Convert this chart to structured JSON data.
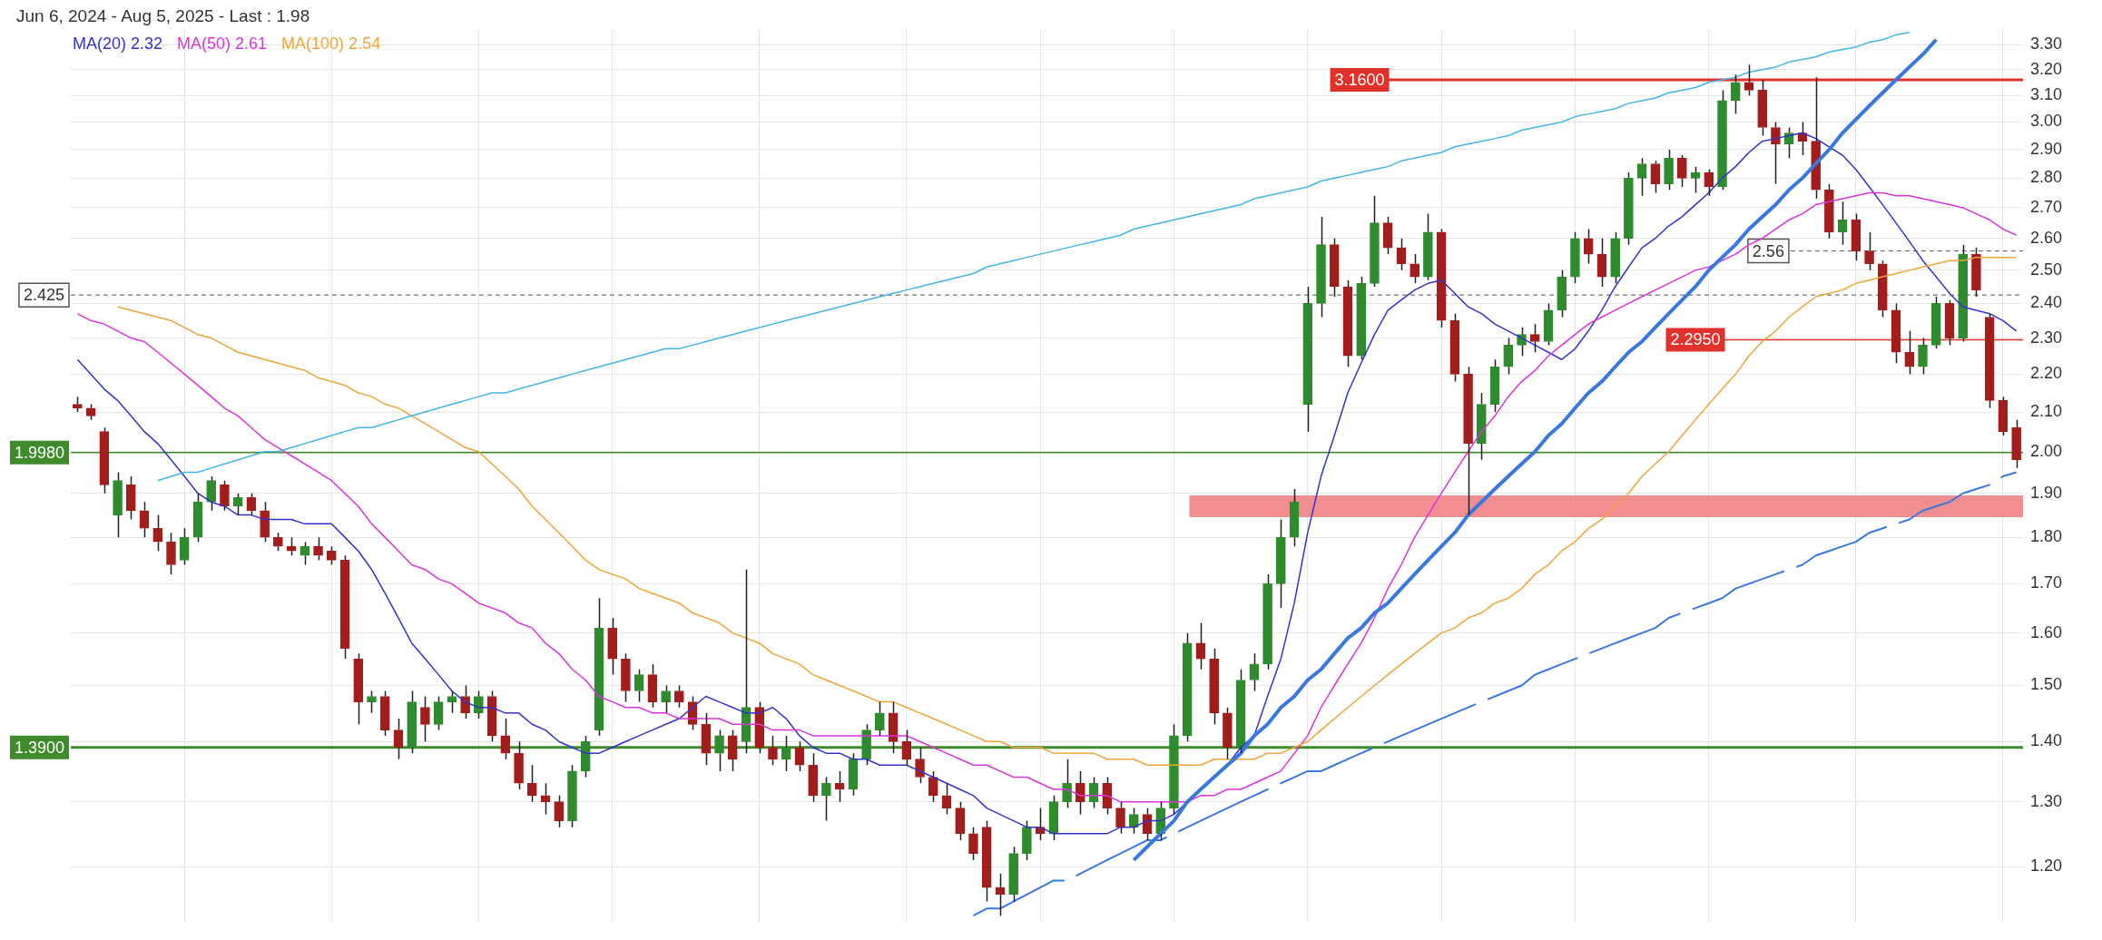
{
  "chart_data": {
    "type": "candlestick",
    "title": "Jun 6, 2024 - Aug 5, 2025 - Last : 1.98",
    "categories": [
      null,
      null,
      null,
      null,
      null,
      null,
      null,
      null,
      null,
      null,
      null,
      null,
      null,
      null,
      null,
      null,
      null,
      null,
      null,
      null,
      null,
      null,
      null,
      null,
      null,
      null,
      null,
      null,
      null,
      null,
      null,
      null,
      null,
      null,
      null,
      null,
      null,
      null,
      null,
      null,
      null,
      null,
      null,
      null,
      null,
      null,
      null,
      null,
      null,
      null,
      null,
      null,
      null,
      null,
      null,
      null,
      null,
      null,
      null,
      null,
      null,
      null,
      null,
      null,
      null,
      null,
      null,
      null,
      null,
      null,
      null,
      null,
      null,
      null,
      null,
      null,
      null,
      null,
      null,
      null,
      null,
      null,
      null,
      null,
      null,
      null,
      null,
      null,
      null,
      null,
      null,
      null,
      null,
      null,
      null,
      null,
      null,
      null,
      null,
      null,
      null,
      null,
      null,
      null,
      null,
      null,
      null,
      null,
      null,
      null,
      null,
      null,
      null,
      null,
      null,
      null,
      null,
      null,
      null,
      null,
      null,
      null,
      null,
      null,
      null,
      null,
      null,
      null,
      null,
      null,
      null,
      null,
      null,
      null,
      null,
      null,
      null,
      null,
      null,
      null,
      null,
      null,
      null,
      null,
      null,
      null
    ],
    "ohlc": [
      [
        2.12,
        2.14,
        2.1,
        2.11
      ],
      [
        2.11,
        2.12,
        2.08,
        2.09
      ],
      [
        2.05,
        2.06,
        1.9,
        1.92
      ],
      [
        1.85,
        1.95,
        1.8,
        1.93
      ],
      [
        1.92,
        1.94,
        1.84,
        1.86
      ],
      [
        1.86,
        1.88,
        1.8,
        1.82
      ],
      [
        1.82,
        1.85,
        1.77,
        1.79
      ],
      [
        1.79,
        1.81,
        1.72,
        1.74
      ],
      [
        1.75,
        1.82,
        1.74,
        1.8
      ],
      [
        1.8,
        1.9,
        1.79,
        1.88
      ],
      [
        1.88,
        1.94,
        1.86,
        1.93
      ],
      [
        1.92,
        1.93,
        1.86,
        1.87
      ],
      [
        1.87,
        1.9,
        1.85,
        1.89
      ],
      [
        1.89,
        1.9,
        1.85,
        1.86
      ],
      [
        1.86,
        1.88,
        1.79,
        1.8
      ],
      [
        1.8,
        1.81,
        1.77,
        1.78
      ],
      [
        1.78,
        1.8,
        1.76,
        1.77
      ],
      [
        1.76,
        1.79,
        1.74,
        1.78
      ],
      [
        1.78,
        1.8,
        1.75,
        1.76
      ],
      [
        1.77,
        1.78,
        1.74,
        1.75
      ],
      [
        1.75,
        1.76,
        1.55,
        1.57
      ],
      [
        1.55,
        1.56,
        1.43,
        1.47
      ],
      [
        1.47,
        1.49,
        1.45,
        1.48
      ],
      [
        1.48,
        1.49,
        1.41,
        1.42
      ],
      [
        1.42,
        1.44,
        1.37,
        1.39
      ],
      [
        1.39,
        1.49,
        1.38,
        1.47
      ],
      [
        1.46,
        1.48,
        1.4,
        1.43
      ],
      [
        1.43,
        1.48,
        1.42,
        1.47
      ],
      [
        1.47,
        1.49,
        1.45,
        1.48
      ],
      [
        1.48,
        1.5,
        1.44,
        1.45
      ],
      [
        1.45,
        1.49,
        1.44,
        1.48
      ],
      [
        1.48,
        1.49,
        1.4,
        1.41
      ],
      [
        1.41,
        1.44,
        1.37,
        1.38
      ],
      [
        1.38,
        1.4,
        1.32,
        1.33
      ],
      [
        1.33,
        1.36,
        1.3,
        1.31
      ],
      [
        1.31,
        1.33,
        1.28,
        1.3
      ],
      [
        1.3,
        1.31,
        1.26,
        1.27
      ],
      [
        1.27,
        1.36,
        1.26,
        1.35
      ],
      [
        1.35,
        1.41,
        1.34,
        1.4
      ],
      [
        1.42,
        1.67,
        1.41,
        1.61
      ],
      [
        1.61,
        1.63,
        1.52,
        1.55
      ],
      [
        1.55,
        1.56,
        1.47,
        1.49
      ],
      [
        1.49,
        1.53,
        1.47,
        1.52
      ],
      [
        1.52,
        1.54,
        1.46,
        1.47
      ],
      [
        1.47,
        1.5,
        1.45,
        1.49
      ],
      [
        1.49,
        1.5,
        1.46,
        1.47
      ],
      [
        1.47,
        1.48,
        1.42,
        1.43
      ],
      [
        1.43,
        1.45,
        1.36,
        1.38
      ],
      [
        1.38,
        1.42,
        1.35,
        1.41
      ],
      [
        1.41,
        1.42,
        1.35,
        1.37
      ],
      [
        1.4,
        1.73,
        1.38,
        1.46
      ],
      [
        1.46,
        1.47,
        1.38,
        1.39
      ],
      [
        1.39,
        1.41,
        1.36,
        1.37
      ],
      [
        1.37,
        1.41,
        1.35,
        1.39
      ],
      [
        1.39,
        1.4,
        1.35,
        1.36
      ],
      [
        1.36,
        1.38,
        1.3,
        1.31
      ],
      [
        1.31,
        1.34,
        1.27,
        1.33
      ],
      [
        1.33,
        1.35,
        1.3,
        1.32
      ],
      [
        1.32,
        1.38,
        1.31,
        1.37
      ],
      [
        1.37,
        1.43,
        1.36,
        1.42
      ],
      [
        1.42,
        1.47,
        1.41,
        1.45
      ],
      [
        1.45,
        1.47,
        1.38,
        1.4
      ],
      [
        1.4,
        1.42,
        1.36,
        1.37
      ],
      [
        1.37,
        1.39,
        1.33,
        1.34
      ],
      [
        1.34,
        1.35,
        1.3,
        1.31
      ],
      [
        1.31,
        1.33,
        1.28,
        1.29
      ],
      [
        1.29,
        1.3,
        1.24,
        1.25
      ],
      [
        1.25,
        1.26,
        1.21,
        1.22
      ],
      [
        1.26,
        1.27,
        1.15,
        1.17
      ],
      [
        1.17,
        1.19,
        1.13,
        1.16
      ],
      [
        1.16,
        1.23,
        1.15,
        1.22
      ],
      [
        1.22,
        1.27,
        1.21,
        1.26
      ],
      [
        1.26,
        1.29,
        1.24,
        1.25
      ],
      [
        1.25,
        1.31,
        1.24,
        1.3
      ],
      [
        1.3,
        1.37,
        1.29,
        1.33
      ],
      [
        1.33,
        1.35,
        1.28,
        1.3
      ],
      [
        1.3,
        1.34,
        1.29,
        1.33
      ],
      [
        1.33,
        1.34,
        1.28,
        1.29
      ],
      [
        1.29,
        1.3,
        1.25,
        1.26
      ],
      [
        1.26,
        1.29,
        1.25,
        1.28
      ],
      [
        1.28,
        1.29,
        1.24,
        1.25
      ],
      [
        1.25,
        1.3,
        1.24,
        1.29
      ],
      [
        1.29,
        1.43,
        1.28,
        1.41
      ],
      [
        1.41,
        1.6,
        1.4,
        1.58
      ],
      [
        1.58,
        1.62,
        1.53,
        1.55
      ],
      [
        1.55,
        1.57,
        1.43,
        1.45
      ],
      [
        1.45,
        1.46,
        1.37,
        1.39
      ],
      [
        1.39,
        1.53,
        1.38,
        1.51
      ],
      [
        1.51,
        1.56,
        1.49,
        1.54
      ],
      [
        1.54,
        1.72,
        1.53,
        1.7
      ],
      [
        1.7,
        1.84,
        1.65,
        1.8
      ],
      [
        1.8,
        1.91,
        1.78,
        1.88
      ],
      [
        2.12,
        2.45,
        2.05,
        2.4
      ],
      [
        2.4,
        2.67,
        2.36,
        2.58
      ],
      [
        2.58,
        2.6,
        2.42,
        2.45
      ],
      [
        2.45,
        2.47,
        2.22,
        2.25
      ],
      [
        2.25,
        2.48,
        2.24,
        2.46
      ],
      [
        2.46,
        2.74,
        2.45,
        2.65
      ],
      [
        2.65,
        2.67,
        2.55,
        2.57
      ],
      [
        2.57,
        2.6,
        2.5,
        2.52
      ],
      [
        2.52,
        2.55,
        2.46,
        2.48
      ],
      [
        2.48,
        2.68,
        2.47,
        2.62
      ],
      [
        2.62,
        2.63,
        2.33,
        2.35
      ],
      [
        2.35,
        2.37,
        2.18,
        2.2
      ],
      [
        2.2,
        2.22,
        1.85,
        2.02
      ],
      [
        2.02,
        2.15,
        1.98,
        2.12
      ],
      [
        2.12,
        2.24,
        2.1,
        2.22
      ],
      [
        2.22,
        2.3,
        2.2,
        2.28
      ],
      [
        2.28,
        2.33,
        2.25,
        2.31
      ],
      [
        2.31,
        2.34,
        2.26,
        2.29
      ],
      [
        2.29,
        2.4,
        2.28,
        2.38
      ],
      [
        2.38,
        2.5,
        2.36,
        2.48
      ],
      [
        2.48,
        2.62,
        2.46,
        2.6
      ],
      [
        2.6,
        2.63,
        2.52,
        2.55
      ],
      [
        2.55,
        2.6,
        2.45,
        2.48
      ],
      [
        2.48,
        2.62,
        2.46,
        2.6
      ],
      [
        2.6,
        2.82,
        2.58,
        2.8
      ],
      [
        2.8,
        2.87,
        2.74,
        2.85
      ],
      [
        2.85,
        2.86,
        2.75,
        2.78
      ],
      [
        2.78,
        2.9,
        2.76,
        2.87
      ],
      [
        2.87,
        2.88,
        2.77,
        2.8
      ],
      [
        2.8,
        2.84,
        2.75,
        2.82
      ],
      [
        2.82,
        2.83,
        2.74,
        2.77
      ],
      [
        2.77,
        3.12,
        2.76,
        3.08
      ],
      [
        3.08,
        3.18,
        3.03,
        3.15
      ],
      [
        3.15,
        3.22,
        3.1,
        3.12
      ],
      [
        3.12,
        3.16,
        2.95,
        2.98
      ],
      [
        2.98,
        3.0,
        2.78,
        2.92
      ],
      [
        2.92,
        2.98,
        2.87,
        2.96
      ],
      [
        2.96,
        3.0,
        2.88,
        2.93
      ],
      [
        2.93,
        3.17,
        2.73,
        2.76
      ],
      [
        2.76,
        2.78,
        2.6,
        2.62
      ],
      [
        2.62,
        2.72,
        2.58,
        2.66
      ],
      [
        2.66,
        2.68,
        2.53,
        2.56
      ],
      [
        2.56,
        2.62,
        2.5,
        2.52
      ],
      [
        2.52,
        2.53,
        2.36,
        2.38
      ],
      [
        2.38,
        2.4,
        2.23,
        2.26
      ],
      [
        2.26,
        2.32,
        2.2,
        2.22
      ],
      [
        2.22,
        2.3,
        2.2,
        2.28
      ],
      [
        2.28,
        2.42,
        2.27,
        2.4
      ],
      [
        2.4,
        2.41,
        2.28,
        2.3
      ],
      [
        2.3,
        2.58,
        2.29,
        2.55
      ],
      [
        2.55,
        2.57,
        2.42,
        2.44
      ],
      [
        2.36,
        2.37,
        2.11,
        2.13
      ],
      [
        2.13,
        2.14,
        2.04,
        2.05
      ],
      [
        2.06,
        2.08,
        1.96,
        1.98
      ]
    ],
    "colors": [
      "#a31d1d",
      "#a31d1d",
      "#a31d1d",
      "#2e8b2e",
      "#a31d1d",
      "#a31d1d",
      "#a31d1d",
      "#a31d1d",
      "#2e8b2e",
      "#2e8b2e",
      "#2e8b2e",
      "#a31d1d",
      "#2e8b2e",
      "#a31d1d",
      "#a31d1d",
      "#a31d1d",
      "#a31d1d",
      "#2e8b2e",
      "#a31d1d",
      "#a31d1d",
      "#a31d1d",
      "#a31d1d",
      "#2e8b2e",
      "#a31d1d",
      "#a31d1d",
      "#2e8b2e",
      "#a31d1d",
      "#2e8b2e",
      "#2e8b2e",
      "#a31d1d",
      "#2e8b2e",
      "#a31d1d",
      "#a31d1d",
      "#a31d1d",
      "#a31d1d",
      "#a31d1d",
      "#a31d1d",
      "#2e8b2e",
      "#2e8b2e",
      "#2e8b2e",
      "#a31d1d",
      "#a31d1d",
      "#2e8b2e",
      "#a31d1d",
      "#2e8b2e",
      "#a31d1d",
      "#a31d1d",
      "#a31d1d",
      "#2e8b2e",
      "#a31d1d",
      "#2e8b2e",
      "#a31d1d",
      "#a31d1d",
      "#2e8b2e",
      "#a31d1d",
      "#a31d1d",
      "#2e8b2e",
      "#a31d1d",
      "#2e8b2e",
      "#2e8b2e",
      "#2e8b2e",
      "#a31d1d",
      "#a31d1d",
      "#a31d1d",
      "#a31d1d",
      "#a31d1d",
      "#a31d1d",
      "#a31d1d",
      "#a31d1d",
      "#a31d1d",
      "#2e8b2e",
      "#2e8b2e",
      "#a31d1d",
      "#2e8b2e",
      "#2e8b2e",
      "#a31d1d",
      "#2e8b2e",
      "#a31d1d",
      "#a31d1d",
      "#2e8b2e",
      "#a31d1d",
      "#2e8b2e",
      "#2e8b2e",
      "#2e8b2e",
      "#a31d1d",
      "#a31d1d",
      "#a31d1d",
      "#2e8b2e",
      "#2e8b2e",
      "#2e8b2e",
      "#2e8b2e",
      "#2e8b2e",
      "#2e8b2e",
      "#2e8b2e",
      "#a31d1d",
      "#a31d1d",
      "#2e8b2e",
      "#2e8b2e",
      "#a31d1d",
      "#a31d1d",
      "#a31d1d",
      "#2e8b2e",
      "#a31d1d",
      "#a31d1d",
      "#a31d1d",
      "#2e8b2e",
      "#2e8b2e",
      "#2e8b2e",
      "#2e8b2e",
      "#a31d1d",
      "#2e8b2e",
      "#2e8b2e",
      "#2e8b2e",
      "#a31d1d",
      "#a31d1d",
      "#2e8b2e",
      "#2e8b2e",
      "#2e8b2e",
      "#a31d1d",
      "#2e8b2e",
      "#a31d1d",
      "#2e8b2e",
      "#a31d1d",
      "#2e8b2e",
      "#2e8b2e",
      "#a31d1d",
      "#a31d1d",
      "#a31d1d",
      "#2e8b2e",
      "#a31d1d",
      "#a31d1d",
      "#a31d1d",
      "#2e8b2e",
      "#a31d1d",
      "#a31d1d",
      "#a31d1d",
      "#a31d1d",
      "#a31d1d",
      "#2e8b2e",
      "#2e8b2e",
      "#a31d1d",
      "#2e8b2e",
      "#a31d1d",
      "#a31d1d",
      "#a31d1d",
      "#a31d1d"
    ],
    "series": [
      {
        "name": "MA(20)  2.32",
        "color": "#3333cc",
        "type": "line",
        "values": [
          2.24,
          2.2,
          2.16,
          2.13,
          2.09,
          2.05,
          2.02,
          1.98,
          1.94,
          1.9,
          1.88,
          1.87,
          1.85,
          1.85,
          1.84,
          1.84,
          1.84,
          1.83,
          1.83,
          1.83,
          1.8,
          1.77,
          1.73,
          1.68,
          1.63,
          1.58,
          1.55,
          1.52,
          1.49,
          1.47,
          1.46,
          1.46,
          1.45,
          1.45,
          1.43,
          1.42,
          1.4,
          1.39,
          1.38,
          1.38,
          1.39,
          1.4,
          1.41,
          1.42,
          1.43,
          1.44,
          1.46,
          1.48,
          1.47,
          1.46,
          1.45,
          1.45,
          1.46,
          1.44,
          1.41,
          1.39,
          1.38,
          1.38,
          1.37,
          1.37,
          1.36,
          1.36,
          1.36,
          1.35,
          1.34,
          1.33,
          1.32,
          1.31,
          1.29,
          1.28,
          1.27,
          1.26,
          1.26,
          1.25,
          1.25,
          1.25,
          1.25,
          1.25,
          1.26,
          1.26,
          1.27,
          1.27,
          1.28,
          1.3,
          1.32,
          1.34,
          1.36,
          1.39,
          1.41,
          1.48,
          1.55,
          1.66,
          1.81,
          1.94,
          2.04,
          2.15,
          2.23,
          2.31,
          2.38,
          2.41,
          2.44,
          2.46,
          2.47,
          2.43,
          2.39,
          2.37,
          2.34,
          2.32,
          2.3,
          2.28,
          2.26,
          2.24,
          2.27,
          2.32,
          2.38,
          2.45,
          2.51,
          2.57,
          2.6,
          2.64,
          2.67,
          2.71,
          2.75,
          2.8,
          2.84,
          2.89,
          2.93,
          2.94,
          2.95,
          2.96,
          2.94,
          2.91,
          2.88,
          2.83,
          2.77,
          2.71,
          2.65,
          2.59,
          2.53,
          2.48,
          2.43,
          2.39,
          2.38,
          2.37,
          2.35,
          2.32
        ]
      },
      {
        "name": "MA(50)  2.61",
        "color": "#dd33dd",
        "type": "line",
        "values": [
          2.37,
          2.35,
          2.34,
          2.32,
          2.3,
          2.29,
          2.26,
          2.23,
          2.2,
          2.17,
          2.14,
          2.11,
          2.09,
          2.06,
          2.03,
          2.01,
          1.99,
          1.97,
          1.95,
          1.93,
          1.9,
          1.87,
          1.83,
          1.8,
          1.77,
          1.74,
          1.73,
          1.71,
          1.7,
          1.68,
          1.66,
          1.65,
          1.64,
          1.62,
          1.61,
          1.58,
          1.56,
          1.53,
          1.51,
          1.48,
          1.47,
          1.46,
          1.46,
          1.45,
          1.45,
          1.44,
          1.44,
          1.44,
          1.44,
          1.43,
          1.43,
          1.43,
          1.42,
          1.42,
          1.42,
          1.41,
          1.41,
          1.41,
          1.41,
          1.41,
          1.41,
          1.41,
          1.41,
          1.4,
          1.39,
          1.38,
          1.37,
          1.36,
          1.36,
          1.35,
          1.34,
          1.34,
          1.33,
          1.32,
          1.32,
          1.31,
          1.31,
          1.31,
          1.3,
          1.3,
          1.3,
          1.3,
          1.3,
          1.3,
          1.31,
          1.31,
          1.32,
          1.32,
          1.33,
          1.34,
          1.35,
          1.38,
          1.41,
          1.46,
          1.5,
          1.54,
          1.58,
          1.63,
          1.69,
          1.74,
          1.8,
          1.85,
          1.9,
          1.95,
          2.0,
          2.05,
          2.09,
          2.14,
          2.18,
          2.21,
          2.25,
          2.28,
          2.31,
          2.34,
          2.36,
          2.38,
          2.4,
          2.42,
          2.44,
          2.46,
          2.48,
          2.5,
          2.51,
          2.53,
          2.55,
          2.58,
          2.6,
          2.63,
          2.66,
          2.68,
          2.71,
          2.72,
          2.73,
          2.74,
          2.75,
          2.75,
          2.74,
          2.74,
          2.73,
          2.72,
          2.71,
          2.7,
          2.68,
          2.66,
          2.63,
          2.61
        ]
      },
      {
        "name": "MA(100)  2.54",
        "color": "#f0a53a",
        "type": "line",
        "values": [
          null,
          null,
          null,
          2.39,
          2.38,
          2.37,
          2.36,
          2.35,
          2.33,
          2.31,
          2.3,
          2.28,
          2.26,
          2.25,
          2.24,
          2.23,
          2.22,
          2.21,
          2.19,
          2.18,
          2.17,
          2.15,
          2.14,
          2.12,
          2.11,
          2.09,
          2.07,
          2.05,
          2.03,
          2.01,
          2.0,
          1.97,
          1.94,
          1.91,
          1.87,
          1.84,
          1.81,
          1.78,
          1.75,
          1.73,
          1.72,
          1.71,
          1.69,
          1.68,
          1.67,
          1.66,
          1.64,
          1.63,
          1.62,
          1.6,
          1.59,
          1.58,
          1.56,
          1.55,
          1.54,
          1.52,
          1.51,
          1.5,
          1.49,
          1.48,
          1.47,
          1.47,
          1.46,
          1.45,
          1.44,
          1.43,
          1.42,
          1.41,
          1.4,
          1.4,
          1.39,
          1.39,
          1.39,
          1.38,
          1.38,
          1.38,
          1.38,
          1.37,
          1.37,
          1.37,
          1.36,
          1.36,
          1.36,
          1.36,
          1.36,
          1.37,
          1.37,
          1.37,
          1.37,
          1.38,
          1.38,
          1.39,
          1.4,
          1.42,
          1.44,
          1.46,
          1.48,
          1.5,
          1.52,
          1.54,
          1.56,
          1.58,
          1.6,
          1.61,
          1.63,
          1.64,
          1.66,
          1.67,
          1.69,
          1.72,
          1.74,
          1.77,
          1.79,
          1.82,
          1.84,
          1.87,
          1.9,
          1.94,
          1.97,
          2.0,
          2.04,
          2.08,
          2.12,
          2.16,
          2.2,
          2.25,
          2.29,
          2.32,
          2.36,
          2.39,
          2.42,
          2.43,
          2.44,
          2.46,
          2.47,
          2.48,
          2.49,
          2.5,
          2.51,
          2.52,
          2.53,
          2.53,
          2.54,
          2.54,
          2.54,
          2.54
        ]
      },
      {
        "color": "#45b4e6",
        "type": "line",
        "values": [
          null,
          null,
          null,
          null,
          null,
          null,
          1.93,
          1.94,
          1.95,
          1.95,
          1.96,
          1.97,
          1.98,
          1.99,
          2.0,
          2.0,
          2.01,
          2.02,
          2.03,
          2.04,
          2.05,
          2.06,
          2.06,
          2.07,
          2.08,
          2.09,
          2.1,
          2.11,
          2.12,
          2.13,
          2.14,
          2.15,
          2.15,
          2.16,
          2.17,
          2.18,
          2.19,
          2.2,
          2.21,
          2.22,
          2.23,
          2.24,
          2.25,
          2.26,
          2.27,
          2.27,
          2.28,
          2.29,
          2.3,
          2.31,
          2.32,
          2.33,
          2.34,
          2.35,
          2.36,
          2.37,
          2.38,
          2.39,
          2.4,
          2.41,
          2.42,
          2.43,
          2.44,
          2.45,
          2.46,
          2.47,
          2.48,
          2.49,
          2.51,
          2.52,
          2.53,
          2.54,
          2.55,
          2.56,
          2.57,
          2.58,
          2.59,
          2.6,
          2.61,
          2.63,
          2.64,
          2.65,
          2.66,
          2.67,
          2.68,
          2.69,
          2.7,
          2.71,
          2.73,
          2.74,
          2.75,
          2.76,
          2.77,
          2.79,
          2.8,
          2.81,
          2.82,
          2.83,
          2.84,
          2.86,
          2.87,
          2.88,
          2.89,
          2.91,
          2.92,
          2.93,
          2.94,
          2.95,
          2.97,
          2.98,
          2.99,
          3.0,
          3.02,
          3.03,
          3.04,
          3.05,
          3.07,
          3.08,
          3.09,
          3.11,
          3.12,
          3.13,
          3.15,
          3.16,
          3.17,
          3.19,
          3.2,
          3.21,
          3.23,
          3.24,
          3.25,
          3.27,
          3.28,
          3.29,
          3.31,
          3.32,
          3.34,
          3.35,
          null,
          null,
          null,
          null,
          null,
          null,
          null,
          null
        ]
      },
      {
        "color": "#3a78e0",
        "type": "line",
        "values": [
          null,
          null,
          null,
          null,
          null,
          null,
          null,
          null,
          null,
          null,
          null,
          null,
          null,
          null,
          null,
          null,
          null,
          null,
          null,
          null,
          null,
          null,
          null,
          null,
          null,
          null,
          null,
          null,
          null,
          null,
          null,
          null,
          null,
          null,
          null,
          null,
          null,
          null,
          null,
          null,
          null,
          null,
          null,
          null,
          null,
          null,
          null,
          null,
          null,
          null,
          null,
          null,
          null,
          null,
          null,
          null,
          null,
          null,
          null,
          null,
          null,
          null,
          null,
          null,
          null,
          null,
          null,
          null,
          null,
          null,
          null,
          null,
          null,
          null,
          null,
          null,
          null,
          null,
          null,
          1.21,
          1.23,
          1.25,
          1.27,
          1.3,
          1.32,
          1.34,
          1.36,
          1.38,
          1.41,
          1.43,
          1.46,
          1.48,
          1.51,
          1.53,
          1.56,
          1.59,
          1.61,
          1.64,
          1.66,
          1.69,
          1.72,
          1.75,
          1.78,
          1.81,
          1.85,
          1.88,
          1.91,
          1.94,
          1.97,
          2.0,
          2.04,
          2.07,
          2.11,
          2.15,
          2.18,
          2.22,
          2.26,
          2.29,
          2.33,
          2.37,
          2.41,
          2.45,
          2.5,
          2.54,
          2.58,
          2.63,
          2.67,
          2.71,
          2.76,
          2.8,
          2.85,
          2.9,
          2.96,
          3.01,
          3.06,
          3.11,
          3.16,
          3.21,
          3.26,
          3.32,
          null,
          null,
          null,
          null,
          null,
          null
        ]
      },
      {
        "color": "#3a78e0",
        "type": "line",
        "line_style": "dashed",
        "values": [
          null,
          null,
          null,
          null,
          null,
          null,
          null,
          null,
          null,
          null,
          null,
          null,
          null,
          null,
          null,
          null,
          null,
          null,
          null,
          null,
          null,
          null,
          null,
          null,
          null,
          null,
          null,
          null,
          null,
          null,
          null,
          null,
          null,
          null,
          null,
          null,
          null,
          null,
          null,
          null,
          null,
          null,
          null,
          null,
          null,
          null,
          null,
          null,
          null,
          null,
          null,
          null,
          null,
          null,
          null,
          null,
          null,
          null,
          null,
          null,
          null,
          null,
          null,
          null,
          null,
          null,
          null,
          1.13,
          1.14,
          1.14,
          1.15,
          1.16,
          1.17,
          1.18,
          1.18,
          1.19,
          1.2,
          1.21,
          1.22,
          1.23,
          1.24,
          1.24,
          1.25,
          1.26,
          1.27,
          1.28,
          1.29,
          1.3,
          1.31,
          1.32,
          1.33,
          1.34,
          1.35,
          1.35,
          1.36,
          1.37,
          1.38,
          1.39,
          1.4,
          1.41,
          1.42,
          1.43,
          1.44,
          1.45,
          1.46,
          1.47,
          1.48,
          1.49,
          1.5,
          1.52,
          1.53,
          1.54,
          1.55,
          1.56,
          1.57,
          1.58,
          1.59,
          1.6,
          1.61,
          1.63,
          1.64,
          1.65,
          1.66,
          1.67,
          1.69,
          1.7,
          1.71,
          1.72,
          1.73,
          1.74,
          1.76,
          1.77,
          1.78,
          1.79,
          1.81,
          1.82,
          1.83,
          1.84,
          1.86,
          1.87,
          1.88,
          1.9,
          1.91,
          1.92,
          1.94,
          1.95
        ]
      }
    ],
    "ref_lines": [
      {
        "axis": "y",
        "value": 1.998,
        "label": "1.9980",
        "color": "#3f8a2a"
      },
      {
        "axis": "y",
        "value": 3.16,
        "label": "3.1600",
        "color": "#e0312b"
      },
      {
        "axis": "y",
        "value": 2.295,
        "label": "2.2950",
        "color": "#e0312b"
      },
      {
        "axis": "y",
        "value": 1.39,
        "label": "1.3900",
        "color": "#3f8a2a"
      },
      {
        "axis": "y",
        "value": 2.425,
        "label": "2.425",
        "color": "#555555",
        "line_style": "dashed"
      },
      {
        "axis": "y",
        "value": 2.56,
        "label": "2.56",
        "color": "#555555",
        "line_style": "dashed"
      }
    ],
    "bands": [
      {
        "axis": "y",
        "from": 1.845,
        "to": 1.895,
        "color": "#ee7a7e"
      }
    ],
    "ylim": [
      1.12,
      3.36
    ],
    "yticks": [
      {
        "value": 1.2,
        "label": "1.20"
      },
      {
        "value": 1.3,
        "label": "1.30"
      },
      {
        "value": 1.4,
        "label": "1.40"
      },
      {
        "value": 1.5,
        "label": "1.50"
      },
      {
        "value": 1.6,
        "label": "1.60"
      },
      {
        "value": 1.7,
        "label": "1.70"
      },
      {
        "value": 1.8,
        "label": "1.80"
      },
      {
        "value": 1.9,
        "label": "1.90"
      },
      {
        "value": 2.0,
        "label": "2.00"
      },
      {
        "value": 2.1,
        "label": "2.10"
      },
      {
        "value": 2.2,
        "label": "2.20"
      },
      {
        "value": 2.3,
        "label": "2.30"
      },
      {
        "value": 2.4,
        "label": "2.40"
      },
      {
        "value": 2.5,
        "label": "2.50"
      },
      {
        "value": 2.6,
        "label": "2.60"
      },
      {
        "value": 2.7,
        "label": "2.70"
      },
      {
        "value": 2.8,
        "label": "2.80"
      },
      {
        "value": 2.9,
        "label": "2.90"
      },
      {
        "value": 3.0,
        "label": "3.00"
      },
      {
        "value": 3.1,
        "label": "3.10"
      },
      {
        "value": 3.2,
        "label": "3.20"
      },
      {
        "value": 3.3,
        "label": "3.30"
      }
    ],
    "log": true,
    "grid": true,
    "tick_labels": "y"
  }
}
